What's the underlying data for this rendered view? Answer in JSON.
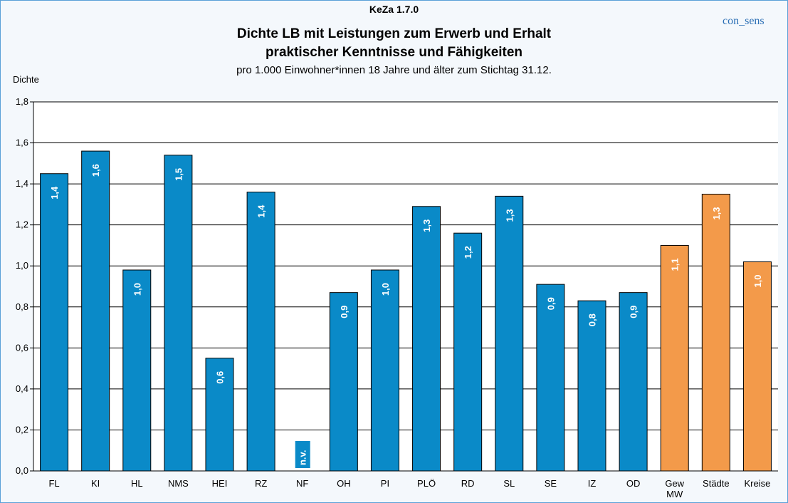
{
  "header": {
    "kicker": "KeZa 1.7.0",
    "title_line1": "Dichte LB mit Leistungen zum Erwerb und Erhalt",
    "title_line2": "praktischer Kenntnisse und Fähigkeiten",
    "subtitle": "pro 1.000 Einwohner*innen 18 Jahre und älter zum Stichtag 31.12.",
    "brand": "con_sens"
  },
  "colors": {
    "municipal_bar": "#0a8ac8",
    "aggregate_bar": "#f39a4a",
    "grid": "#000000",
    "background": "#f4f8fc"
  },
  "chart_data": {
    "type": "bar",
    "title": "Dichte LB mit Leistungen zum Erwerb und Erhalt praktischer Kenntnisse und Fähigkeiten",
    "subtitle": "pro 1.000 Einwohner*innen 18 Jahre und älter zum Stichtag 31.12.",
    "ylabel": "Dichte",
    "xlabel": "",
    "ylim": [
      0,
      1.8
    ],
    "yticks": [
      "0,0",
      "0,2",
      "0,4",
      "0,6",
      "0,8",
      "1,0",
      "1,2",
      "1,4",
      "1,6",
      "1,8"
    ],
    "grid": true,
    "categories": [
      "FL",
      "KI",
      "HL",
      "NMS",
      "HEI",
      "RZ",
      "NF",
      "OH",
      "PI",
      "PLÖ",
      "RD",
      "SL",
      "SE",
      "IZ",
      "OD",
      "Gew MW",
      "Städte",
      "Kreise"
    ],
    "values": [
      1.45,
      1.56,
      0.98,
      1.54,
      0.55,
      1.36,
      null,
      0.87,
      0.98,
      1.29,
      1.16,
      1.34,
      0.91,
      0.83,
      0.87,
      1.1,
      1.35,
      1.02
    ],
    "data_labels": [
      "1,4",
      "1,6",
      "1,0",
      "1,5",
      "0,6",
      "1,4",
      "n.v.",
      "0,9",
      "1,0",
      "1,3",
      "1,2",
      "1,3",
      "0,9",
      "0,8",
      "0,9",
      "1,1",
      "1,3",
      "1,0"
    ],
    "bar_group": [
      "municipal",
      "municipal",
      "municipal",
      "municipal",
      "municipal",
      "municipal",
      "municipal",
      "municipal",
      "municipal",
      "municipal",
      "municipal",
      "municipal",
      "municipal",
      "municipal",
      "municipal",
      "aggregate",
      "aggregate",
      "aggregate"
    ]
  }
}
